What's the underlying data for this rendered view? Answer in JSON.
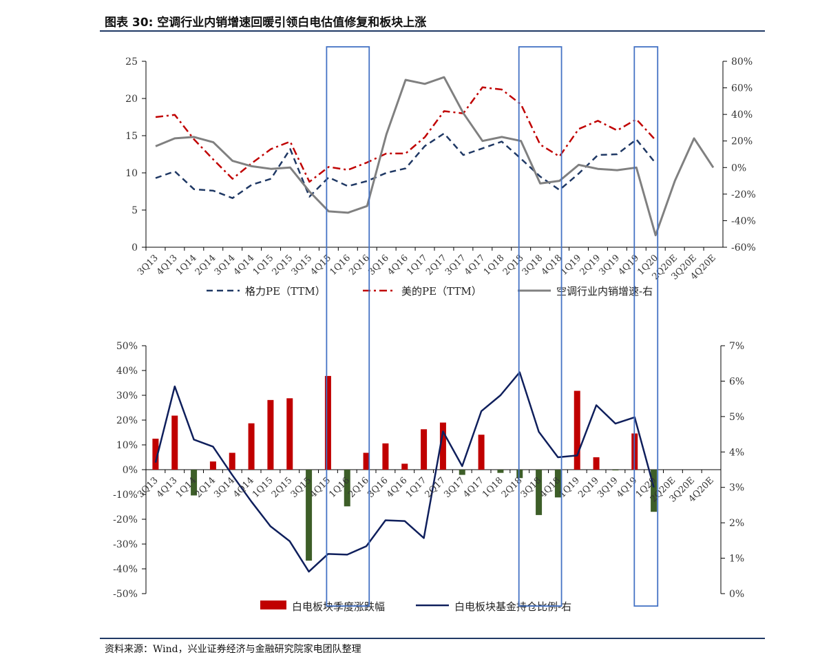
{
  "figure": {
    "title": "图表 30:  空调行业内销增速回暖引领白电估值修复和板块上涨",
    "source": "资料来源：Wind，兴业证券经济与金融研究院家电团队整理"
  },
  "chart_data": [
    {
      "type": "line",
      "categories": [
        "3Q13",
        "4Q13",
        "1Q14",
        "2Q14",
        "3Q14",
        "4Q14",
        "1Q15",
        "2Q15",
        "3Q15",
        "4Q15",
        "1Q16",
        "2Q16",
        "3Q16",
        "4Q16",
        "1Q17",
        "2Q17",
        "3Q17",
        "4Q17",
        "1Q18",
        "2Q18",
        "3Q18",
        "4Q18",
        "1Q19",
        "2Q19",
        "3Q19",
        "4Q19",
        "1Q20",
        "2Q20E",
        "3Q20E",
        "4Q20E"
      ],
      "y_left": {
        "ticks": [
          "0",
          "5",
          "10",
          "15",
          "20",
          "25"
        ],
        "lim": [
          0,
          25
        ]
      },
      "y_right": {
        "ticks": [
          "-60%",
          "-40%",
          "-20%",
          "0%",
          "20%",
          "40%",
          "60%",
          "80%"
        ],
        "lim": [
          -60,
          80
        ]
      },
      "series": [
        {
          "name": "格力PE（TTM）",
          "axis": "left",
          "color": "#1f3864",
          "dash": "dash",
          "values": [
            9.3,
            10.2,
            7.8,
            7.6,
            6.6,
            8.4,
            9.2,
            13.2,
            6.8,
            9.4,
            8.2,
            8.9,
            10.0,
            10.6,
            13.6,
            15.3,
            12.4,
            13.3,
            14.2,
            11.9,
            9.5,
            7.7,
            9.9,
            12.4,
            12.5,
            14.5,
            11.3,
            null,
            null,
            null
          ]
        },
        {
          "name": "美的PE（TTM）",
          "axis": "left",
          "color": "#c00000",
          "dash": "dashdot",
          "values": [
            17.5,
            17.8,
            14.5,
            11.8,
            9.2,
            11.3,
            13.2,
            14.2,
            8.8,
            10.8,
            10.4,
            11.4,
            12.6,
            12.6,
            14.8,
            18.3,
            18.0,
            21.5,
            21.2,
            19.2,
            13.8,
            12.2,
            15.9,
            17.0,
            15.7,
            17.2,
            14.4,
            null,
            null,
            null
          ]
        },
        {
          "name": "空调行业内销增速-右",
          "axis": "right",
          "color": "#808080",
          "dash": "solid",
          "values": [
            16,
            22,
            23,
            19,
            5,
            1,
            -1,
            0,
            -18,
            -33,
            -34,
            -29,
            25,
            66,
            63,
            68,
            41,
            20,
            23,
            20,
            -12,
            -10,
            2,
            -1,
            -2,
            0,
            -51,
            -10,
            22,
            0
          ]
        }
      ],
      "boxes": [
        [
          "4Q15",
          "2Q16"
        ],
        [
          "2Q18",
          "4Q18"
        ],
        [
          "4Q19",
          "1Q20"
        ]
      ]
    },
    {
      "type": "bar",
      "categories": [
        "3Q13",
        "4Q13",
        "1Q14",
        "2Q14",
        "3Q14",
        "4Q14",
        "1Q15",
        "2Q15",
        "3Q15",
        "4Q15",
        "1Q16",
        "2Q16",
        "3Q16",
        "4Q16",
        "1Q17",
        "2Q17",
        "3Q17",
        "4Q17",
        "1Q18",
        "2Q18",
        "3Q18",
        "4Q18",
        "1Q19",
        "2Q19",
        "3Q19",
        "4Q19",
        "1Q20",
        "2Q20E",
        "3Q20E",
        "4Q20E"
      ],
      "y_left": {
        "ticks": [
          "-50%",
          "-40%",
          "-30%",
          "-20%",
          "-10%",
          "0%",
          "10%",
          "20%",
          "30%",
          "40%",
          "50%"
        ],
        "lim": [
          -50,
          50
        ]
      },
      "y_right": {
        "ticks": [
          "0%",
          "1%",
          "2%",
          "3%",
          "4%",
          "5%",
          "6%",
          "7%"
        ],
        "lim": [
          0,
          7
        ]
      },
      "series": [
        {
          "name": "白电板块季度涨跌幅",
          "axis": "left",
          "type": "bar",
          "values": [
            12.5,
            21.8,
            -10.4,
            3.3,
            6.8,
            18.7,
            28.1,
            28.8,
            -36.7,
            37.8,
            -14.8,
            6.8,
            10.6,
            2.4,
            16.3,
            19.0,
            -2.1,
            14.1,
            -1.3,
            -3.4,
            -18.3,
            -11.2,
            31.8,
            5.0,
            -0.3,
            14.6,
            -17.0,
            null,
            null,
            null
          ],
          "pos_color": "#c00000",
          "neg_color": "#3d5e28"
        },
        {
          "name": "白电板块基金持仓比例-右",
          "axis": "right",
          "type": "line",
          "color": "#0f1f5c",
          "values": [
            3.7,
            5.85,
            4.35,
            4.15,
            3.35,
            2.6,
            1.9,
            1.48,
            0.62,
            1.12,
            1.1,
            1.34,
            2.07,
            2.05,
            1.57,
            4.58,
            3.6,
            5.15,
            5.6,
            6.25,
            4.57,
            3.85,
            3.9,
            5.32,
            4.8,
            4.98,
            3.0,
            null,
            null,
            null
          ]
        }
      ]
    }
  ]
}
